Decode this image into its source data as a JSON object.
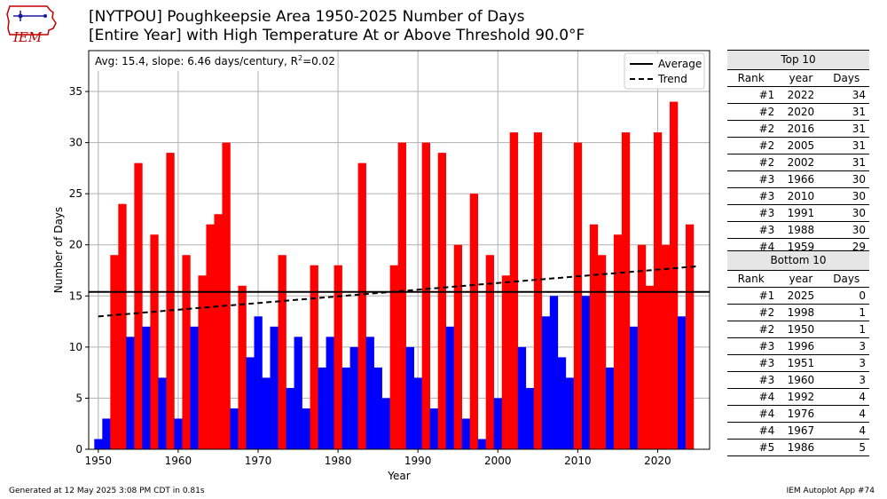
{
  "logo": {
    "text": "IEM"
  },
  "title": {
    "line1": "[NYTPOU] Poughkeepsie Area 1950-2025 Number of Days",
    "line2": "[Entire Year] with High Temperature At or Above Threshold 90.0°F"
  },
  "colors": {
    "above": "#ff0000",
    "below": "#0000ff"
  },
  "chart_data": {
    "type": "bar",
    "xlabel": "Year",
    "ylabel": "Number of Days",
    "xlim": [
      1948.8,
      2026.5
    ],
    "ylim": [
      0,
      39
    ],
    "xticks": [
      1950,
      1960,
      1970,
      1980,
      1990,
      2000,
      2010,
      2020
    ],
    "yticks": [
      0,
      5,
      10,
      15,
      20,
      25,
      30,
      35
    ],
    "grid": true,
    "annotation": "Avg: 15.4, slope: 6.46 days/century, R",
    "annotation_sup": "2",
    "annotation_tail": "=0.02",
    "average": 15.4,
    "trend": {
      "start": [
        1950,
        13.0
      ],
      "end": [
        2025,
        17.9
      ]
    },
    "legend": {
      "position": "top-right",
      "items": [
        "Average",
        "Trend"
      ]
    },
    "x": [
      1950,
      1951,
      1952,
      1953,
      1954,
      1955,
      1956,
      1957,
      1958,
      1959,
      1960,
      1961,
      1962,
      1963,
      1964,
      1965,
      1966,
      1967,
      1968,
      1969,
      1970,
      1971,
      1972,
      1973,
      1974,
      1975,
      1976,
      1977,
      1978,
      1979,
      1980,
      1981,
      1982,
      1983,
      1984,
      1985,
      1986,
      1987,
      1988,
      1989,
      1990,
      1991,
      1992,
      1993,
      1994,
      1995,
      1996,
      1997,
      1998,
      1999,
      2000,
      2001,
      2002,
      2003,
      2004,
      2005,
      2006,
      2007,
      2008,
      2009,
      2010,
      2011,
      2012,
      2013,
      2014,
      2015,
      2016,
      2017,
      2018,
      2019,
      2020,
      2021,
      2022,
      2023,
      2024,
      2025
    ],
    "values": [
      1,
      3,
      19,
      24,
      11,
      28,
      12,
      21,
      7,
      29,
      3,
      19,
      12,
      17,
      22,
      23,
      30,
      4,
      16,
      9,
      13,
      7,
      12,
      19,
      6,
      11,
      4,
      18,
      8,
      11,
      18,
      8,
      10,
      28,
      11,
      8,
      5,
      18,
      30,
      10,
      7,
      30,
      4,
      29,
      12,
      20,
      3,
      25,
      1,
      19,
      5,
      17,
      31,
      10,
      6,
      31,
      13,
      15,
      9,
      7,
      30,
      15,
      22,
      19,
      8,
      21,
      31,
      12,
      20,
      16,
      31,
      20,
      34,
      13,
      22,
      0
    ]
  },
  "top10": {
    "heading": "Top 10",
    "columns": [
      "Rank",
      "year",
      "Days"
    ],
    "rows": [
      [
        "#1",
        "2022",
        "34"
      ],
      [
        "#2",
        "2020",
        "31"
      ],
      [
        "#2",
        "2016",
        "31"
      ],
      [
        "#2",
        "2005",
        "31"
      ],
      [
        "#2",
        "2002",
        "31"
      ],
      [
        "#3",
        "1966",
        "30"
      ],
      [
        "#3",
        "2010",
        "30"
      ],
      [
        "#3",
        "1991",
        "30"
      ],
      [
        "#3",
        "1988",
        "30"
      ],
      [
        "#4",
        "1959",
        "29"
      ]
    ]
  },
  "bottom10": {
    "heading": "Bottom 10",
    "columns": [
      "Rank",
      "year",
      "Days"
    ],
    "rows": [
      [
        "#1",
        "2025",
        "0"
      ],
      [
        "#2",
        "1998",
        "1"
      ],
      [
        "#2",
        "1950",
        "1"
      ],
      [
        "#3",
        "1996",
        "3"
      ],
      [
        "#3",
        "1951",
        "3"
      ],
      [
        "#3",
        "1960",
        "3"
      ],
      [
        "#4",
        "1992",
        "4"
      ],
      [
        "#4",
        "1976",
        "4"
      ],
      [
        "#4",
        "1967",
        "4"
      ],
      [
        "#5",
        "1986",
        "5"
      ]
    ]
  },
  "footer": {
    "left": "Generated at 12 May 2025 3:08 PM CDT in 0.81s",
    "right": "IEM Autoplot App #74"
  }
}
